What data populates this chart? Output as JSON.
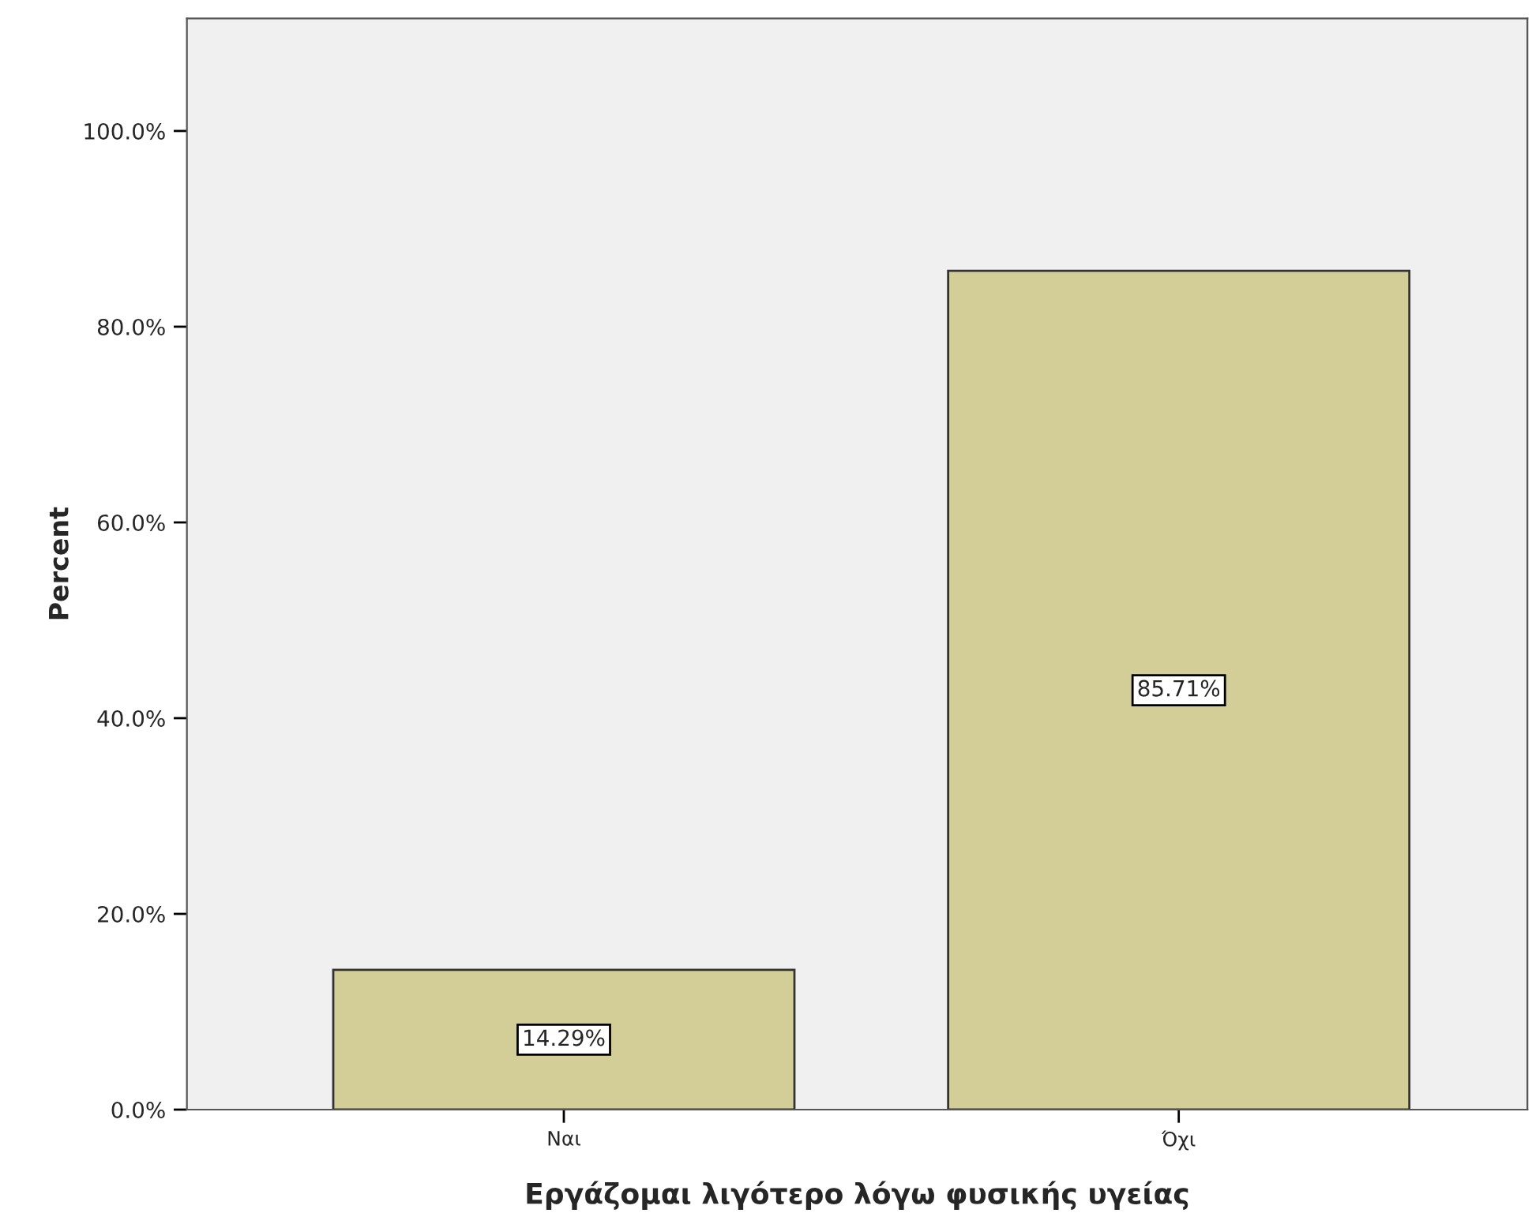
{
  "chart_data": {
    "type": "bar",
    "xlabel": "Εργάζομαι λιγότερο λόγω φυσικής υγείας",
    "ylabel": "Percent",
    "categories": [
      "Ναι",
      "Όχι"
    ],
    "values": [
      14.29,
      85.71
    ],
    "value_labels": [
      "14.29%",
      "85.71%"
    ],
    "color": "#d3ce97",
    "ylim": [
      0,
      111.5
    ],
    "yticks": [
      {
        "value": 0,
        "label": "0.0%"
      },
      {
        "value": 20,
        "label": "20.0%"
      },
      {
        "value": 40,
        "label": "40.0%"
      },
      {
        "value": 60,
        "label": "60.0%"
      },
      {
        "value": 80,
        "label": "80.0%"
      },
      {
        "value": 100,
        "label": "100.0%"
      }
    ],
    "grid": false,
    "legend": false
  }
}
